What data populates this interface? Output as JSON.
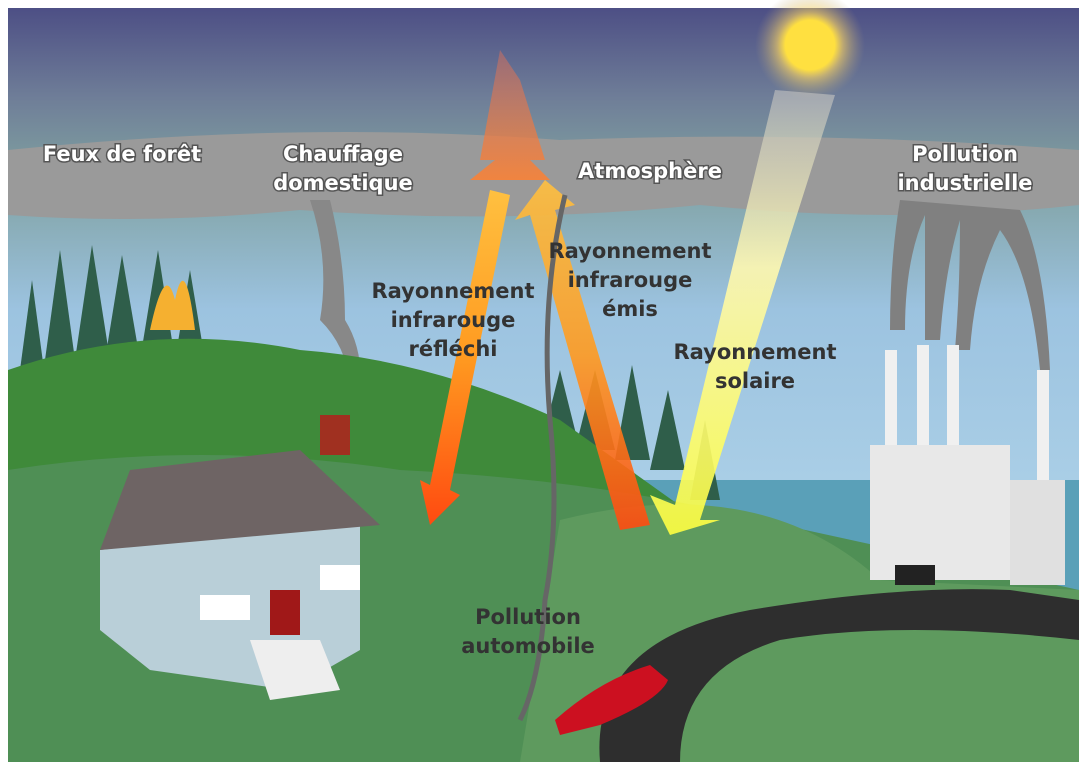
{
  "labels": [
    {
      "lines": [
        "Feux de forêt"
      ]
    },
    {
      "lines": [
        "Chauffage",
        "domestique"
      ]
    },
    {
      "lines": [
        "Atmosphère"
      ]
    },
    {
      "lines": [
        "Pollution",
        "industrielle"
      ]
    },
    {
      "lines": [
        "Rayonnement",
        "infrarouge",
        "réfléchi"
      ]
    },
    {
      "lines": [
        "Rayonnement",
        "infrarouge",
        "émis"
      ]
    },
    {
      "lines": [
        "Rayonnement",
        "solaire"
      ]
    },
    {
      "lines": [
        "Pollution",
        "automobile"
      ]
    }
  ]
}
